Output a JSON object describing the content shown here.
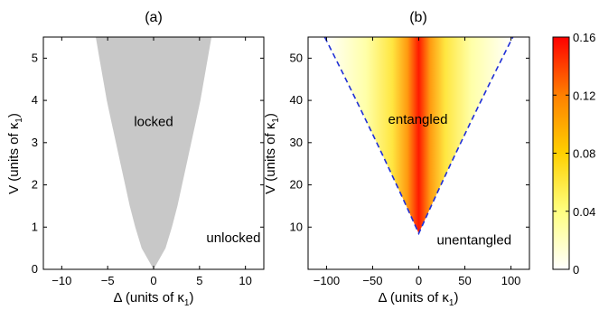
{
  "chart_data": [
    {
      "panel_label": "(a)",
      "type": "area",
      "xlabel": "Δ (units of κ",
      "xlabel_sub": "1",
      "xlabel_end": ")",
      "ylabel": "V (units of κ",
      "ylabel_sub": "1",
      "ylabel_end": ")",
      "xlim": [
        -12,
        12
      ],
      "ylim": [
        0,
        5.5
      ],
      "xticks": [
        -10,
        -5,
        0,
        5,
        10
      ],
      "yticks": [
        0,
        1,
        2,
        3,
        4,
        5
      ],
      "fill_color": "#c8c8c8",
      "region_boundary": {
        "description_x_at_v": "locked region |Δ| < boundary(V)",
        "v": [
          0,
          0.5,
          1,
          1.5,
          2,
          2.5,
          3,
          3.5,
          4,
          4.5,
          5,
          5.5
        ],
        "delta": [
          0,
          1.3,
          2.0,
          2.6,
          3.1,
          3.6,
          4.1,
          4.6,
          5.1,
          5.5,
          5.9,
          6.3
        ]
      },
      "annotations": [
        {
          "text": "locked",
          "x": 0,
          "y": 3.5
        },
        {
          "text": "unlocked",
          "x": 8.7,
          "y": 0.75
        }
      ]
    },
    {
      "panel_label": "(b)",
      "type": "heatmap",
      "xlabel": "Δ (units of κ",
      "xlabel_sub": "1",
      "xlabel_end": ")",
      "ylabel": "V (units of κ",
      "ylabel_sub": "1",
      "ylabel_end": ")",
      "xlim": [
        -120,
        120
      ],
      "ylim": [
        0,
        55
      ],
      "xticks": [
        -100,
        -50,
        0,
        50,
        100
      ],
      "yticks": [
        10,
        20,
        30,
        40,
        50
      ],
      "boundary": {
        "style": "dashed",
        "color": "#1f2fd6",
        "apex": [
          0,
          8.5
        ],
        "left_top": [
          -102,
          55
        ],
        "right_top": [
          102,
          55
        ]
      },
      "intensity_max": 0.16,
      "intensity_profile": "peak at Δ = 0, decreasing toward boundary",
      "annotations": [
        {
          "text": "entangled",
          "x": -1,
          "y": 35.5
        },
        {
          "text": "unentangled",
          "x": 60,
          "y": 7
        }
      ],
      "colorbar": {
        "ticks": [
          "0",
          "0.04",
          "0.08",
          "0.12",
          "0.16"
        ],
        "values": [
          0,
          0.04,
          0.08,
          0.12,
          0.16
        ],
        "colors": [
          "#ffffff",
          "#ffff80",
          "#ffd000",
          "#ff8000",
          "#ff0000"
        ]
      }
    }
  ]
}
